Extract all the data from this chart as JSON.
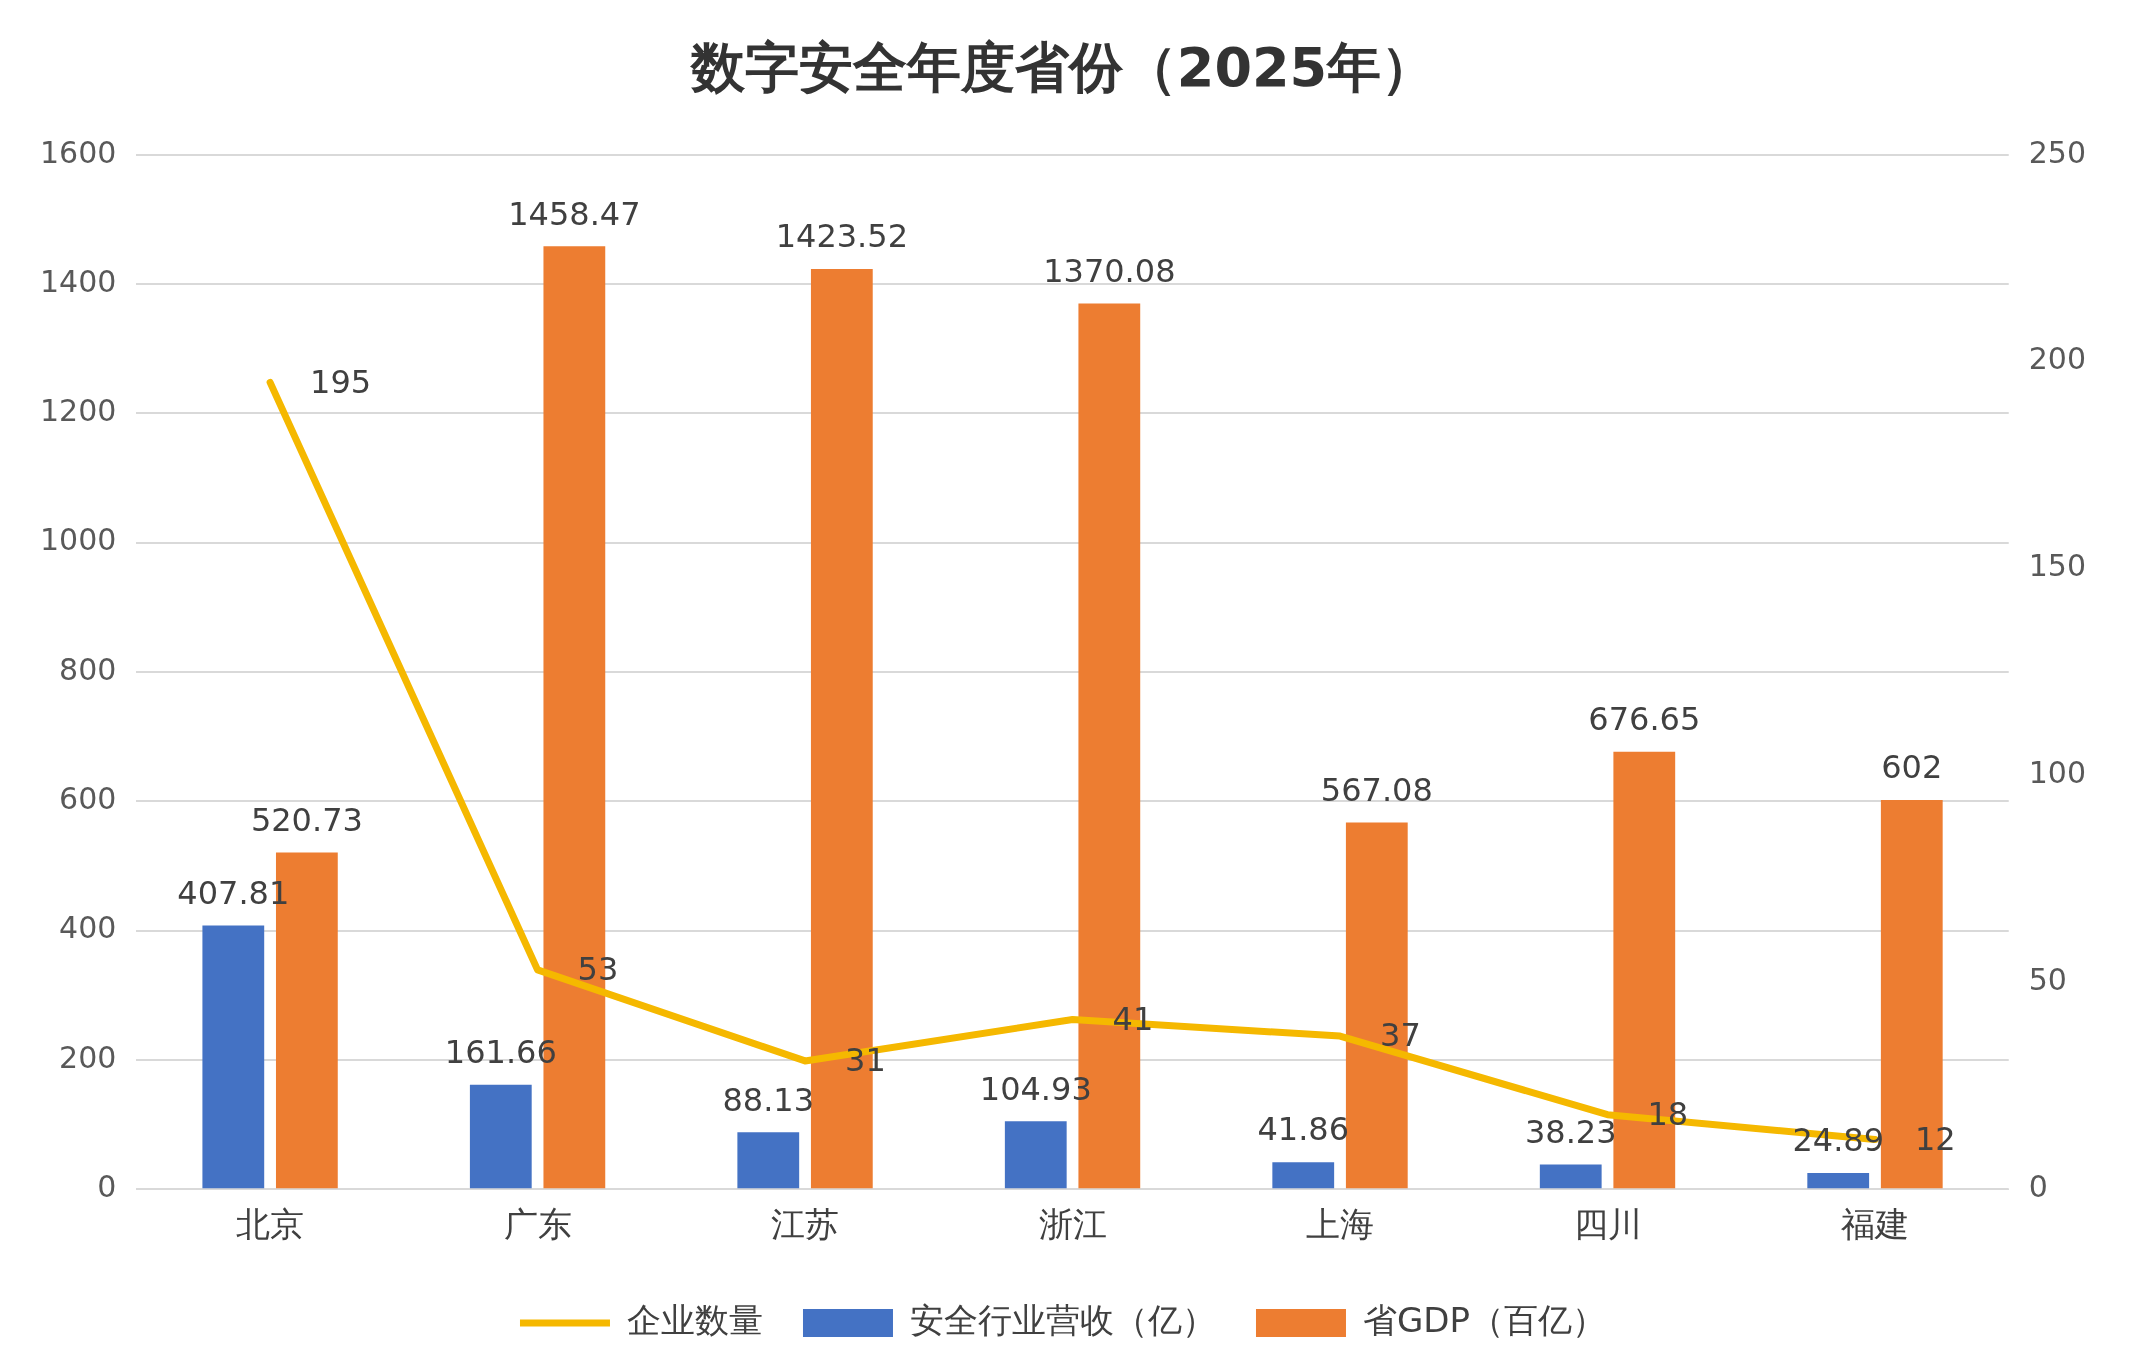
{
  "chart_data": {
    "type": "bar",
    "title": "数字安全年度省份（2025年）",
    "categories": [
      "北京",
      "广东",
      "江苏",
      "浙江",
      "上海",
      "四川",
      "福建"
    ],
    "series": [
      {
        "name": "安全行业营收（亿）",
        "color": "#4472c4",
        "values": [
          407.81,
          161.66,
          88.13,
          104.93,
          41.86,
          38.23,
          24.89
        ]
      },
      {
        "name": "省GDP（百亿）",
        "color": "#ed7d31",
        "values": [
          520.73,
          1458.47,
          1423.52,
          1370.08,
          567.08,
          676.65,
          602
        ]
      },
      {
        "name": "企业数量",
        "type": "line",
        "axis": "y2",
        "color": "#f5b800",
        "values": [
          195,
          53,
          31,
          41,
          37,
          18,
          12
        ]
      }
    ],
    "ylim": [
      0,
      1600
    ],
    "yticks": [
      0,
      200,
      400,
      600,
      800,
      1000,
      1200,
      1400,
      1600
    ],
    "y2lim": [
      0,
      250
    ],
    "y2ticks": [
      0,
      50,
      100,
      150,
      200,
      250
    ],
    "grid": "y",
    "legend": "bottom",
    "marker": "none",
    "line_style": "solid",
    "data_labels": true
  }
}
